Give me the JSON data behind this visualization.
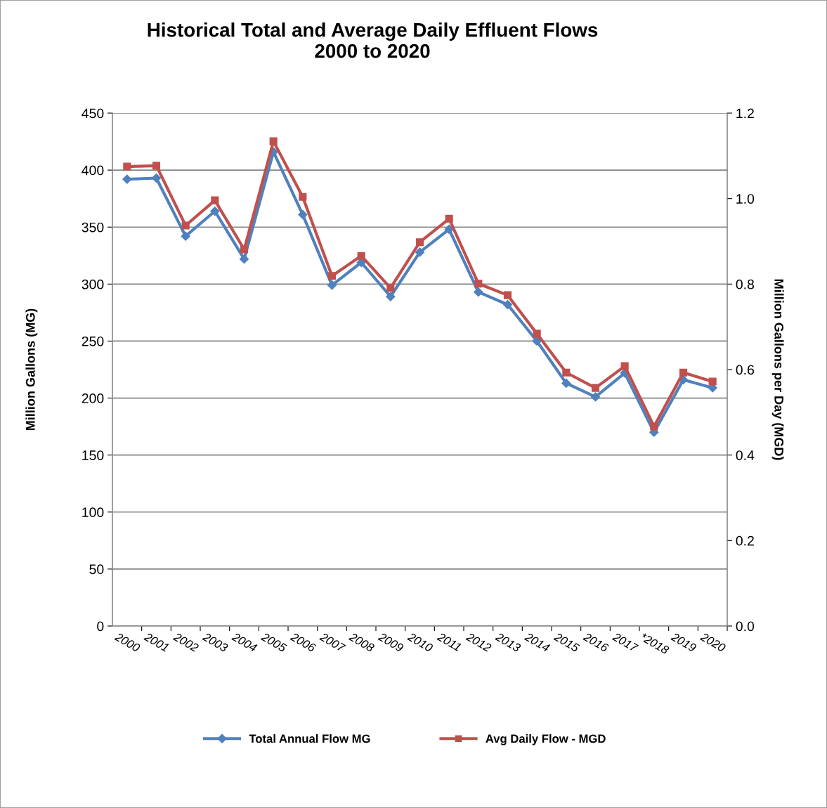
{
  "chart_data": {
    "type": "line",
    "title": "Historical Total and Average Daily Effluent Flows\n2000 to 2020",
    "ylabel": "Million Gallons (MG)",
    "y2label": "Million Gallons per Day (MGD)",
    "categories": [
      "2000",
      "2001",
      "2002",
      "2003",
      "2004",
      "2005",
      "2006",
      "2007",
      "2008",
      "2009",
      "2010",
      "2011",
      "2012",
      "2013",
      "2014",
      "2015",
      "2016",
      "2017",
      "*2018",
      "2019",
      "2020"
    ],
    "series": [
      {
        "name": "Total Annual Flow MG",
        "color": "#4f81bd",
        "marker": "diamond",
        "values": [
          392,
          393,
          342,
          364,
          322,
          416,
          361,
          299,
          319,
          289,
          328,
          348,
          293,
          282,
          250,
          213,
          201,
          222,
          170,
          216,
          209
        ]
      },
      {
        "name": "Avg Daily Flow - MGD",
        "color": "#c0504d",
        "marker": "square",
        "axis": "y2",
        "values": [
          1.075,
          1.077,
          0.937,
          0.996,
          0.881,
          1.134,
          1.004,
          0.819,
          0.866,
          0.791,
          0.898,
          0.953,
          0.801,
          0.774,
          0.684,
          0.593,
          0.557,
          0.608,
          0.467,
          0.593,
          0.572
        ]
      }
    ],
    "ylim": [
      0,
      450
    ],
    "yticks": [
      0,
      50,
      100,
      150,
      200,
      250,
      300,
      350,
      400,
      450
    ],
    "y2lim": [
      0,
      1.2
    ],
    "y2ticks": [
      {
        "value": 0,
        "label": "0.0"
      },
      {
        "value": 0.2,
        "label": "0.2"
      },
      {
        "value": 0.4,
        "label": "0.4"
      },
      {
        "value": 0.6,
        "label": "0.6"
      },
      {
        "value": 0.8,
        "label": "0.8"
      },
      {
        "value": 1.0,
        "label": "1.0"
      },
      {
        "value": 1.2,
        "label": "1.2"
      }
    ],
    "grid": "y",
    "legend": "bottom",
    "line_style": "solid"
  }
}
